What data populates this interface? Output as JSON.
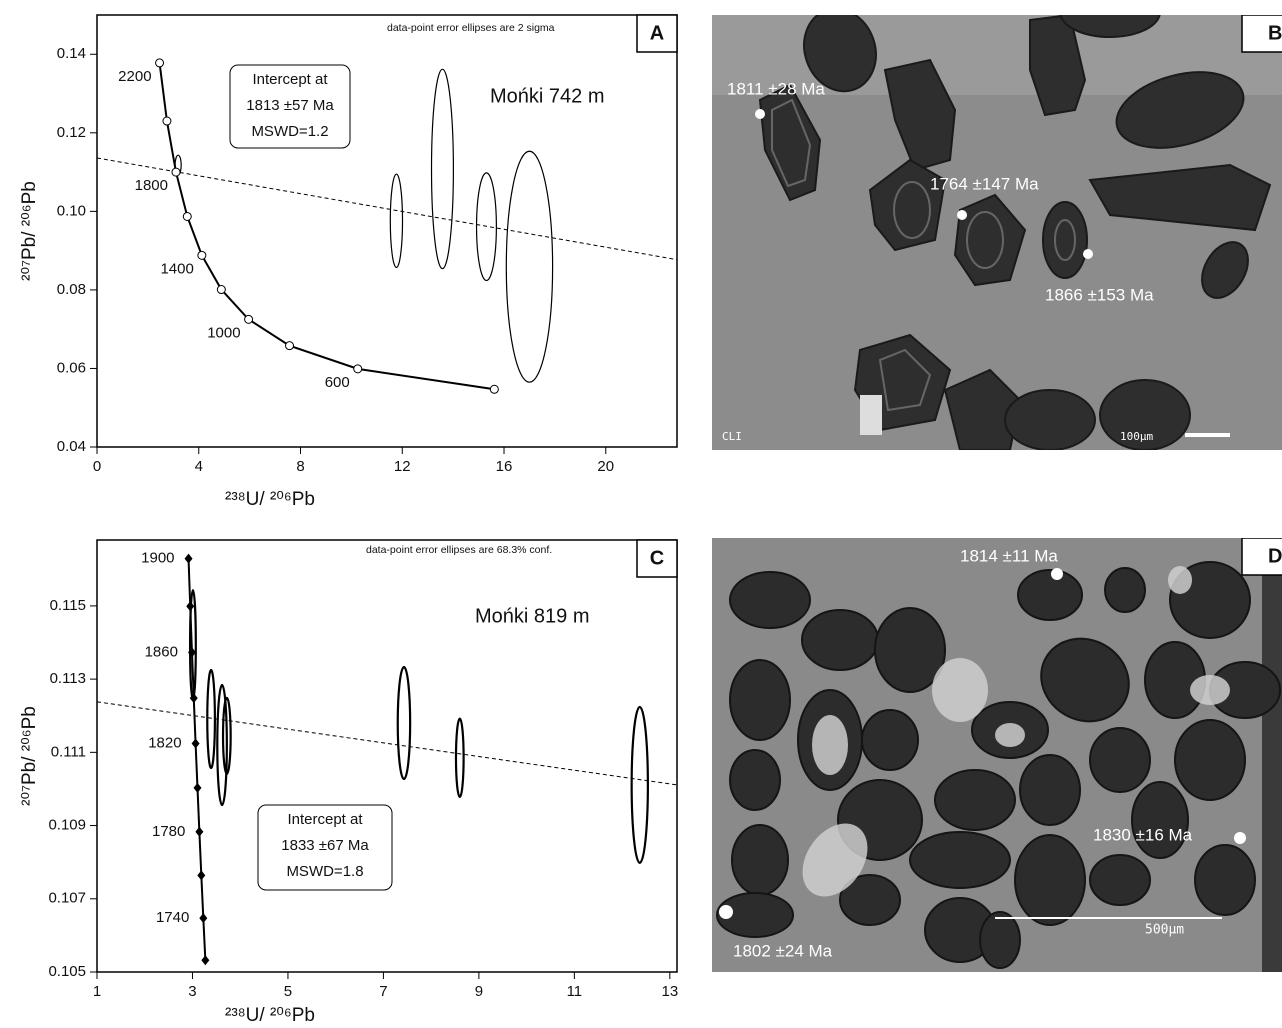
{
  "chart_data": [
    {
      "type": "concordia",
      "panel": "A",
      "sample": "Mońki 742 m",
      "note": "data-point error ellipses are 2 sigma",
      "annotation": [
        "Intercept at",
        "1813 ±57 Ma",
        "MSWD=1.2"
      ],
      "x_label": "²³⁸U/ ²⁰⁶Pb",
      "y_label": "²⁰⁷Pb/ ²⁰⁶Pb",
      "xlim": [
        0,
        22.8
      ],
      "ylim": [
        0.04,
        0.15
      ],
      "xticks": [
        0,
        4,
        8,
        12,
        16,
        20
      ],
      "yticks": [
        0.04,
        0.06,
        0.08,
        {
          "value": 0.1,
          "label": "0.10"
        },
        0.12,
        0.14
      ],
      "marker": "circle",
      "concordia": {
        "x": [
          2.459,
          2.749,
          3.105,
          3.549,
          4.122,
          4.888,
          5.959,
          7.568,
          10.25,
          15.62
        ],
        "y": [
          0.1378,
          0.123,
          0.11,
          0.0987,
          0.0888,
          0.0801,
          0.0725,
          0.0658,
          0.0599,
          0.0547
        ],
        "labels": [
          "2200",
          null,
          "1800",
          null,
          "1400",
          null,
          "1000",
          null,
          "600",
          null
        ]
      },
      "ellipses": {
        "x": [
          3.19,
          11.77,
          13.58,
          15.31,
          17.0
        ],
        "y": [
          0.1118,
          0.0976,
          0.1108,
          0.0961,
          0.0859
        ],
        "x_err": [
          0.12,
          0.24,
          0.43,
          0.39,
          0.91
        ],
        "y_err": [
          0.0025,
          0.0119,
          0.0254,
          0.0137,
          0.0294
        ]
      },
      "discordia": {
        "x": [
          0,
          22.8
        ],
        "y": [
          0.1136,
          0.0877
        ]
      }
    },
    {
      "type": "concordia",
      "panel": "C",
      "sample": "Mońki 819 m",
      "note": "data-point error ellipses are 68.3% conf.",
      "annotation": [
        "Intercept at",
        "1833 ±67 Ma",
        "MSWD=1.8"
      ],
      "x_label": "²³⁸U/ ²⁰⁶Pb",
      "y_label": "²⁰⁷Pb/ ²⁰⁶Pb",
      "xlim": [
        1,
        13.15
      ],
      "ylim": [
        0.105,
        0.1168
      ],
      "xticks": [
        1,
        3,
        5,
        7,
        9,
        11,
        13
      ],
      "yticks": [
        0.105,
        0.107,
        0.109,
        0.111,
        0.113,
        0.115
      ],
      "marker": "diamond",
      "concordia": {
        "x": [
          2.9175,
          2.9531,
          2.9897,
          3.0271,
          3.0653,
          3.105,
          3.1445,
          3.1853,
          3.2272,
          3.27
        ],
        "y": [
          0.11629,
          0.11499,
          0.11373,
          0.11248,
          0.11124,
          0.11003,
          0.10883,
          0.10764,
          0.10647,
          0.10532
        ],
        "labels": [
          "1900",
          null,
          "1860",
          null,
          "1820",
          null,
          "1780",
          null,
          "1740",
          null
        ]
      },
      "ellipses": {
        "x": [
          3.01,
          3.39,
          3.62,
          3.72,
          7.43,
          8.6,
          12.37
        ],
        "y": [
          0.11393,
          0.11191,
          0.1112,
          0.11145,
          0.1118,
          0.11085,
          0.11011
        ],
        "x_err": [
          0.06,
          0.08,
          0.1,
          0.08,
          0.13,
          0.08,
          0.17
        ],
        "y_err": [
          0.0015,
          0.00134,
          0.00164,
          0.00104,
          0.00153,
          0.00107,
          0.00213
        ]
      },
      "discordia": {
        "x": [
          1,
          13.15
        ],
        "y": [
          0.11238,
          0.11011
        ]
      }
    }
  ],
  "images": [
    {
      "panel": "B",
      "mode": "CLI",
      "scale_bar": "100μm",
      "labels": [
        "1811 ±28 Ma",
        "1764 ±147 Ma",
        "1866 ±153 Ma"
      ]
    },
    {
      "panel": "D",
      "scale_bar": "500μm",
      "labels": [
        "1814 ±11 Ma",
        "1830 ±16 Ma",
        "1802 ±24 Ma"
      ]
    }
  ]
}
